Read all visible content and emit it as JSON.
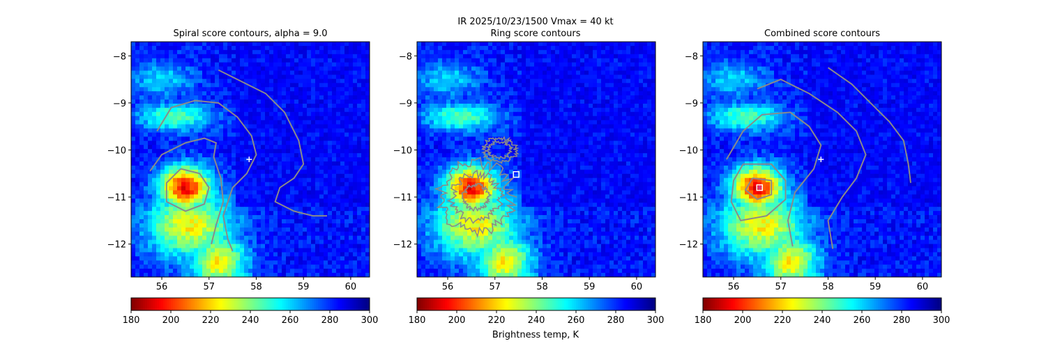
{
  "suptitle": [
    "IR  2025/10/23/1500    Vmax = 40 kt",
    "Ring score contours"
  ],
  "colorbar_label": "Brightness temp, K",
  "chart_data": {
    "type": "heatmap",
    "colormap": "jet_r",
    "clim": [
      180,
      300
    ],
    "colorbar_ticks": [
      "180",
      "200",
      "220",
      "240",
      "260",
      "280",
      "300"
    ],
    "xlim": [
      55.35,
      60.4
    ],
    "ylim": [
      -12.7,
      -7.7
    ],
    "xticks": [
      "56",
      "57",
      "58",
      "59",
      "60"
    ],
    "yticks": [
      "−8",
      "−9",
      "−10",
      "−11",
      "−12"
    ],
    "brightness_features": [
      {
        "lon": 56.5,
        "lat": -10.8,
        "tb": 195,
        "sx": 0.55,
        "sy": 0.45
      },
      {
        "lon": 56.6,
        "lat": -11.6,
        "tb": 225,
        "sx": 0.9,
        "sy": 0.7
      },
      {
        "lon": 57.2,
        "lat": -12.4,
        "tb": 225,
        "sx": 0.6,
        "sy": 0.6
      },
      {
        "lon": 56.3,
        "lat": -9.3,
        "tb": 245,
        "sx": 0.8,
        "sy": 0.3
      },
      {
        "lon": 56.0,
        "lat": -8.5,
        "tb": 260,
        "sx": 0.7,
        "sy": 0.4
      }
    ],
    "background_tb": 283,
    "panels": [
      {
        "title": "Spiral score contours, alpha =  9.0",
        "contours": [
          [
            [
              57.2,
              -8.3
            ],
            [
              57.6,
              -8.5
            ],
            [
              58.2,
              -8.8
            ],
            [
              58.6,
              -9.2
            ],
            [
              58.9,
              -9.8
            ],
            [
              59.0,
              -10.3
            ],
            [
              58.8,
              -10.6
            ],
            [
              58.5,
              -10.8
            ],
            [
              58.4,
              -11.1
            ],
            [
              58.8,
              -11.3
            ],
            [
              59.2,
              -11.4
            ],
            [
              59.5,
              -11.4
            ]
          ],
          [
            [
              55.9,
              -9.6
            ],
            [
              56.2,
              -9.1
            ],
            [
              56.7,
              -8.95
            ],
            [
              57.2,
              -9.0
            ],
            [
              57.6,
              -9.3
            ],
            [
              57.9,
              -9.7
            ],
            [
              58.0,
              -10.1
            ],
            [
              57.8,
              -10.5
            ],
            [
              57.5,
              -10.8
            ],
            [
              57.3,
              -11.4
            ],
            [
              57.4,
              -11.9
            ],
            [
              57.5,
              -12.15
            ]
          ],
          [
            [
              55.75,
              -10.45
            ],
            [
              56.0,
              -10.1
            ],
            [
              56.5,
              -9.85
            ],
            [
              56.9,
              -9.75
            ],
            [
              57.15,
              -9.85
            ],
            [
              57.1,
              -10.15
            ],
            [
              57.25,
              -10.6
            ],
            [
              57.3,
              -11.1
            ],
            [
              57.15,
              -11.6
            ],
            [
              57.05,
              -12.0
            ]
          ],
          [
            [
              56.4,
              -10.4
            ],
            [
              56.8,
              -10.5
            ],
            [
              57.0,
              -10.8
            ],
            [
              56.9,
              -11.15
            ],
            [
              56.5,
              -11.3
            ],
            [
              56.1,
              -11.1
            ],
            [
              56.1,
              -10.7
            ],
            [
              56.4,
              -10.4
            ]
          ]
        ],
        "markers": [
          {
            "lon": 57.85,
            "lat": -10.2,
            "kind": "plus"
          }
        ]
      },
      {
        "title": "",
        "contours": [],
        "noisy_contours": [
          {
            "lon": 56.6,
            "lat": -11.0,
            "rx": 0.75,
            "ry": 0.72,
            "n": 3
          },
          {
            "lon": 57.1,
            "lat": -10.0,
            "rx": 0.35,
            "ry": 0.25,
            "n": 2
          }
        ],
        "markers": [
          {
            "lon": 57.45,
            "lat": -10.52,
            "kind": "square"
          }
        ]
      },
      {
        "title": "Combined score contours",
        "contours": [
          [
            [
              58.0,
              -8.25
            ],
            [
              58.5,
              -8.6
            ],
            [
              58.9,
              -9.0
            ],
            [
              59.3,
              -9.4
            ],
            [
              59.6,
              -9.8
            ],
            [
              59.7,
              -10.3
            ],
            [
              59.75,
              -10.7
            ]
          ],
          [
            [
              56.5,
              -8.7
            ],
            [
              57.0,
              -8.5
            ],
            [
              57.6,
              -8.8
            ],
            [
              58.2,
              -9.2
            ],
            [
              58.6,
              -9.6
            ],
            [
              58.8,
              -10.1
            ],
            [
              58.6,
              -10.6
            ],
            [
              58.3,
              -11.0
            ],
            [
              58.0,
              -11.5
            ],
            [
              58.1,
              -12.1
            ]
          ],
          [
            [
              55.85,
              -10.2
            ],
            [
              56.2,
              -9.6
            ],
            [
              56.6,
              -9.25
            ],
            [
              57.2,
              -9.2
            ],
            [
              57.6,
              -9.5
            ],
            [
              57.85,
              -9.9
            ],
            [
              57.7,
              -10.4
            ],
            [
              57.3,
              -10.9
            ],
            [
              57.15,
              -11.5
            ],
            [
              57.25,
              -12.05
            ]
          ],
          [
            [
              56.2,
              -10.3
            ],
            [
              56.8,
              -10.3
            ],
            [
              57.1,
              -10.65
            ],
            [
              57.1,
              -11.05
            ],
            [
              56.7,
              -11.4
            ],
            [
              56.15,
              -11.5
            ],
            [
              55.95,
              -11.1
            ],
            [
              56.0,
              -10.65
            ],
            [
              56.2,
              -10.3
            ]
          ],
          [
            [
              56.4,
              -10.6
            ],
            [
              56.8,
              -10.65
            ],
            [
              56.8,
              -10.95
            ],
            [
              56.5,
              -11.05
            ],
            [
              56.25,
              -10.85
            ],
            [
              56.4,
              -10.6
            ]
          ]
        ],
        "markers": [
          {
            "lon": 57.85,
            "lat": -10.2,
            "kind": "plus"
          },
          {
            "lon": 56.55,
            "lat": -10.8,
            "kind": "center"
          }
        ]
      }
    ]
  }
}
